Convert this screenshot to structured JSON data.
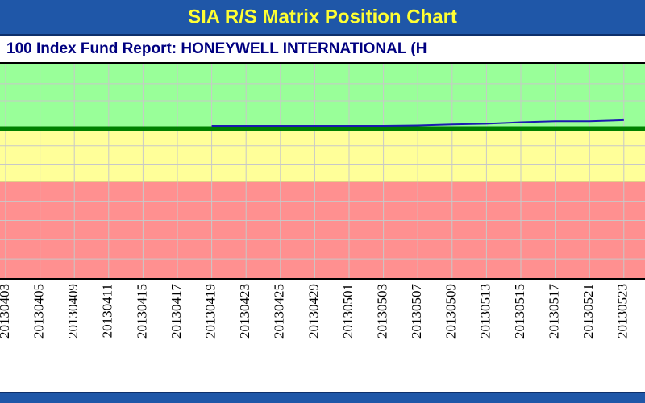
{
  "chart_data": {
    "type": "line",
    "title": "SIA R/S Matrix Position Chart",
    "subtitle": "100 Index Fund Report: HONEYWELL INTERNATIONAL (H",
    "categories": [
      "20130403",
      "20130405",
      "20130409",
      "20130411",
      "20130415",
      "20130417",
      "20130419",
      "20130423",
      "20130425",
      "20130429",
      "20130501",
      "20130503",
      "20130507",
      "20130509",
      "20130513",
      "20130515",
      "20130517",
      "20130521",
      "20130523"
    ],
    "series": [
      {
        "color": "#1a1ab0",
        "values": [
          null,
          null,
          null,
          null,
          null,
          null,
          71.3,
          71.3,
          71.3,
          71.3,
          71.3,
          71.3,
          71.5,
          72,
          72.3,
          73,
          73.5,
          73.5,
          74
        ]
      }
    ],
    "ylim": [
      0,
      100
    ],
    "yticks": [
      9,
      18,
      27,
      36,
      53,
      62,
      83,
      91
    ],
    "bands": [
      {
        "from": 0,
        "to": 45,
        "color": "#ff9090"
      },
      {
        "from": 45,
        "to": 70,
        "color": "#ffff99"
      },
      {
        "from": 70,
        "to": 100,
        "color": "#99ff99"
      }
    ],
    "threshold": 70,
    "grid": true
  }
}
